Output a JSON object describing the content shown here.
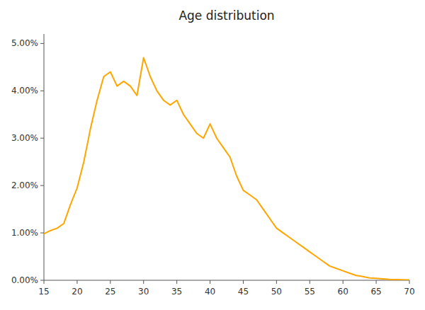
{
  "chart_data": {
    "type": "line",
    "title": "Age distribution",
    "color": "#FFA500",
    "grid": false,
    "x": [
      15,
      16,
      17,
      18,
      19,
      20,
      21,
      22,
      23,
      24,
      25,
      26,
      27,
      28,
      29,
      30,
      31,
      32,
      33,
      34,
      35,
      36,
      37,
      38,
      39,
      40,
      41,
      42,
      43,
      44,
      45,
      46,
      47,
      48,
      49,
      50,
      51,
      52,
      53,
      54,
      55,
      56,
      57,
      58,
      59,
      60,
      61,
      62,
      63,
      64,
      65,
      66,
      67,
      68,
      69,
      70
    ],
    "values": [
      0.0098,
      0.0105,
      0.011,
      0.012,
      0.016,
      0.0195,
      0.025,
      0.032,
      0.038,
      0.043,
      0.044,
      0.041,
      0.042,
      0.041,
      0.039,
      0.047,
      0.043,
      0.04,
      0.038,
      0.037,
      0.038,
      0.035,
      0.033,
      0.031,
      0.03,
      0.033,
      0.03,
      0.028,
      0.026,
      0.022,
      0.019,
      0.018,
      0.017,
      0.015,
      0.013,
      0.011,
      0.01,
      0.009,
      0.008,
      0.007,
      0.006,
      0.005,
      0.004,
      0.003,
      0.0025,
      0.002,
      0.0015,
      0.001,
      0.0008,
      0.0005,
      0.0004,
      0.0003,
      0.0002,
      0.00015,
      0.0001,
      8e-05
    ],
    "xlim": [
      15,
      70
    ],
    "ylim": [
      0,
      0.052
    ],
    "xticks": [
      15,
      20,
      25,
      30,
      35,
      40,
      45,
      50,
      55,
      60,
      65,
      70
    ],
    "yticks": [
      {
        "value": 0.0,
        "label": "0.00%"
      },
      {
        "value": 0.01,
        "label": "1.00%"
      },
      {
        "value": 0.02,
        "label": "2.00%"
      },
      {
        "value": 0.03,
        "label": "3.00%"
      },
      {
        "value": 0.04,
        "label": "4.00%"
      },
      {
        "value": 0.05,
        "label": "5.00%"
      }
    ]
  }
}
